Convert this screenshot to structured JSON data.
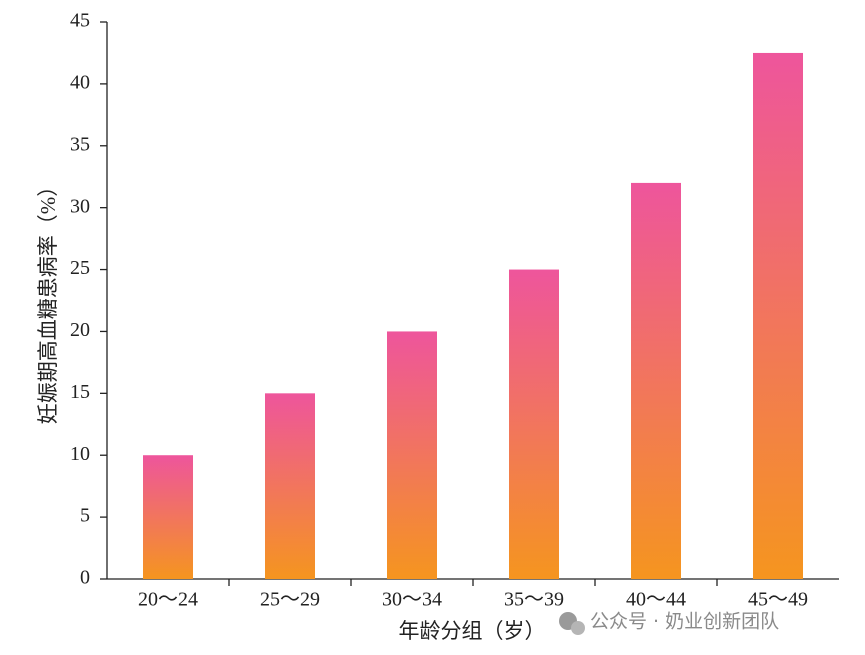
{
  "chart_data": {
    "type": "bar",
    "x_label": "年龄分组（岁）",
    "y_label": "妊娠期高血糖患病率（%）",
    "categories": [
      "20～24",
      "25～29",
      "30～34",
      "35～39",
      "40～44",
      "45～49"
    ],
    "values": [
      10,
      15,
      20,
      25,
      32,
      42.5
    ],
    "gradient": [
      "#ee559c",
      "#f5951f"
    ],
    "ylim": [
      0,
      45
    ],
    "yticks": [
      0,
      5,
      10,
      15,
      20,
      25,
      30,
      35,
      40,
      45
    ],
    "grid": false,
    "watermark": "公众号 · 奶业创新团队"
  }
}
